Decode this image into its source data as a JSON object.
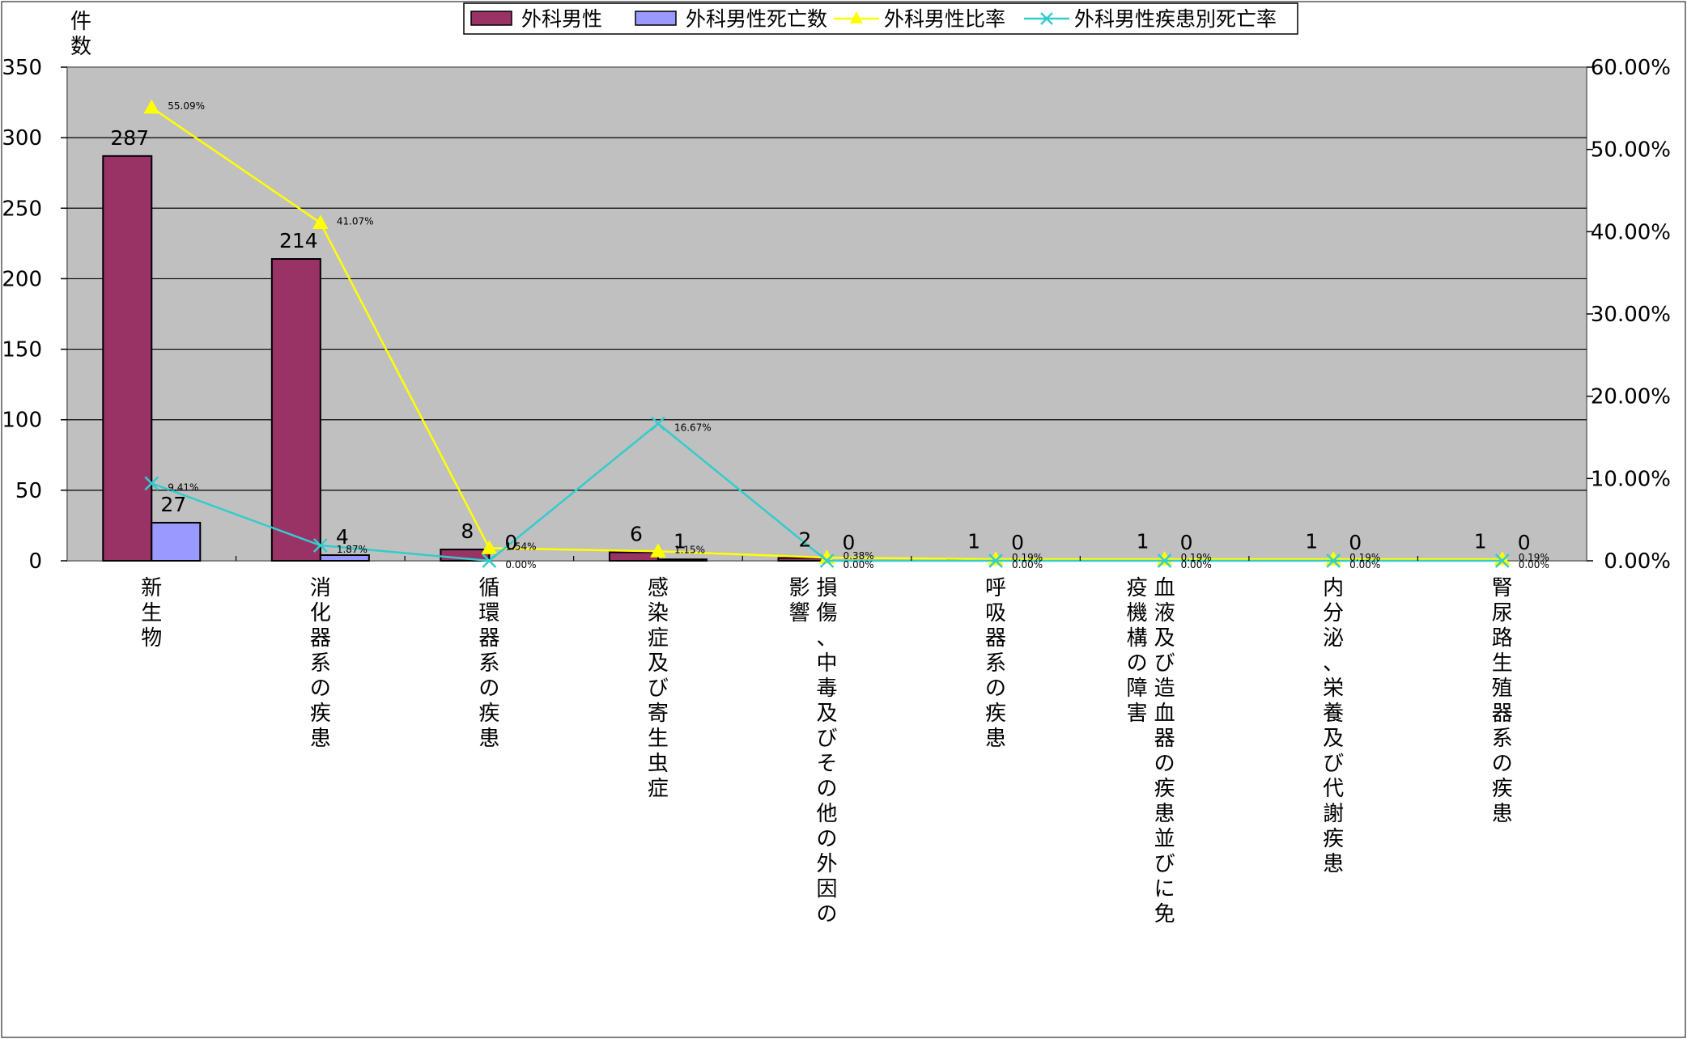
{
  "chart_data": {
    "type": "bar",
    "ylabel": "件数",
    "categories": [
      "新生物",
      "消化器系の疾患",
      "循環器系の疾患",
      "感染症及び寄生虫症",
      "損傷、中毒及びその他の外因の影響",
      "呼吸器系の疾患",
      "血液及び造血器の疾患並びに免疫機構の障害",
      "内分泌、栄養及び代謝疾患",
      "腎尿路生殖器系の疾患"
    ],
    "series": [
      {
        "name": "外科男性",
        "kind": "bar",
        "axis": "left",
        "color": "#993366",
        "values": [
          287,
          214,
          8,
          6,
          2,
          1,
          1,
          1,
          1
        ],
        "labels": [
          "287",
          "214",
          "8",
          "6",
          "2",
          "1",
          "1",
          "1",
          "1"
        ]
      },
      {
        "name": "外科男性死亡数",
        "kind": "bar",
        "axis": "left",
        "color": "#9999ff",
        "values": [
          27,
          4,
          0,
          1,
          0,
          0,
          0,
          0,
          0
        ],
        "labels": [
          "27",
          "4",
          "0",
          "1",
          "0",
          "0",
          "0",
          "0",
          "0"
        ]
      },
      {
        "name": "外科男性比率",
        "kind": "line",
        "axis": "right",
        "color": "#ffff00",
        "marker": "triangle",
        "values": [
          55.09,
          41.07,
          1.54,
          1.15,
          0.38,
          0.19,
          0.19,
          0.19,
          0.19
        ],
        "labels": [
          "55.09%",
          "41.07%",
          "1.54%",
          "1.15%",
          "0.38%",
          "0.19%",
          "0.19%",
          "0.19%",
          "0.19%"
        ]
      },
      {
        "name": "外科男性疾患別死亡率",
        "kind": "line",
        "axis": "right",
        "color": "#33cccc",
        "marker": "x",
        "values": [
          9.41,
          1.87,
          0.0,
          16.67,
          0.0,
          0.0,
          0.0,
          0.0,
          0.0
        ],
        "labels": [
          "9.41%",
          "1.87%",
          "0.00%",
          "16.67%",
          "0.00%",
          "0.00%",
          "0.00%",
          "0.00%",
          "0.00%"
        ]
      }
    ],
    "ylim": [
      0,
      350
    ],
    "yticks": [
      "0",
      "50",
      "100",
      "150",
      "200",
      "250",
      "300",
      "350"
    ],
    "ylim_right": [
      0,
      60
    ],
    "yticks_right": [
      "0.00%",
      "10.00%",
      "20.00%",
      "30.00%",
      "40.00%",
      "50.00%",
      "60.00%"
    ],
    "grid": true,
    "plot_background": "#c0c0c0",
    "legend_position": "top"
  }
}
